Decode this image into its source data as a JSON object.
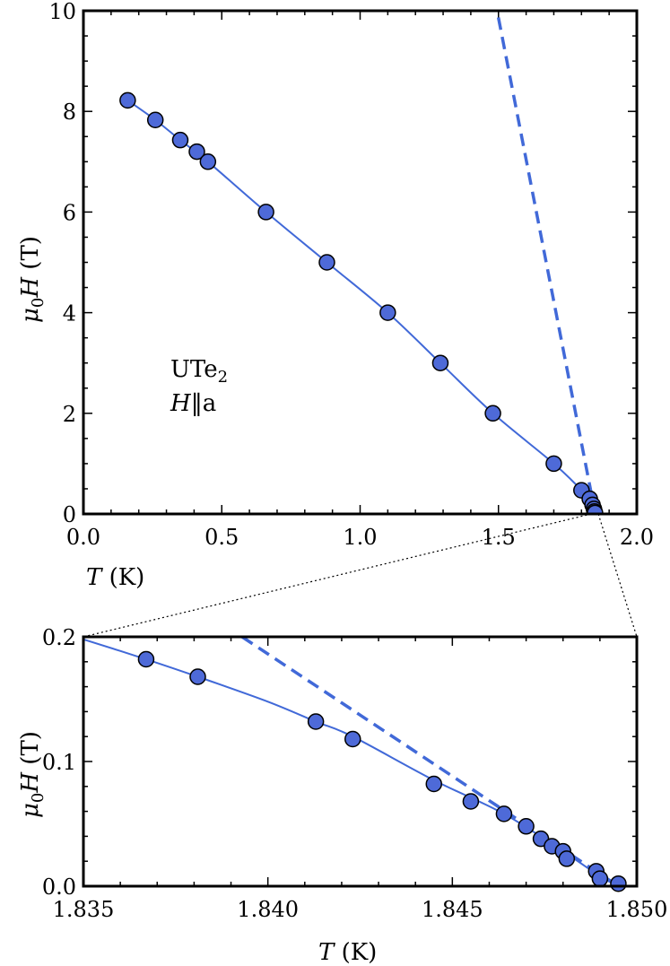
{
  "colors": {
    "series": "#4e6ad8",
    "line": "#4169d8"
  },
  "chart_data": [
    {
      "type": "scatter",
      "panel": "main",
      "xlabel": "T (K)",
      "ylabel": "μ0H (T)",
      "xlim": [
        0.0,
        2.0
      ],
      "ylim": [
        0,
        10
      ],
      "xticks": [
        "0.0",
        "0.5",
        "1.0",
        "1.5",
        "2.0"
      ],
      "yticks": [
        "0",
        "2",
        "4",
        "6",
        "8",
        "10"
      ],
      "annotation": {
        "line1": "UTe2",
        "line2": "H‖a"
      },
      "points": [
        [
          0.16,
          8.22
        ],
        [
          0.26,
          7.83
        ],
        [
          0.35,
          7.43
        ],
        [
          0.41,
          7.2
        ],
        [
          0.45,
          7.0
        ],
        [
          0.66,
          6.0
        ],
        [
          0.88,
          5.0
        ],
        [
          1.1,
          4.0
        ],
        [
          1.29,
          3.0
        ],
        [
          1.48,
          2.0
        ],
        [
          1.7,
          1.0
        ],
        [
          1.8,
          0.47
        ],
        [
          1.83,
          0.3
        ],
        [
          1.84,
          0.18
        ],
        [
          1.845,
          0.1
        ],
        [
          1.847,
          0.05
        ],
        [
          1.849,
          0.02
        ]
      ],
      "fit_line": [
        [
          0.16,
          8.22
        ],
        [
          0.26,
          7.83
        ],
        [
          0.35,
          7.43
        ],
        [
          0.45,
          7.0
        ],
        [
          0.66,
          6.0
        ],
        [
          0.88,
          5.0
        ],
        [
          1.1,
          4.0
        ],
        [
          1.29,
          3.0
        ],
        [
          1.48,
          2.0
        ],
        [
          1.7,
          1.0
        ],
        [
          1.8,
          0.47
        ],
        [
          1.84,
          0.18
        ],
        [
          1.85,
          0.0
        ]
      ],
      "dashed_line": [
        [
          1.85,
          0.0
        ],
        [
          1.495,
          10.0
        ]
      ],
      "zoom_box": {
        "x": [
          1.835,
          1.85
        ],
        "y": [
          0.0,
          0.2
        ]
      }
    },
    {
      "type": "scatter",
      "panel": "inset",
      "xlabel": "T (K)",
      "ylabel": "μ0H (T)",
      "xlim": [
        1.835,
        1.85
      ],
      "ylim": [
        0.0,
        0.2
      ],
      "xticks": [
        "1.835",
        "1.840",
        "1.845",
        "1.850"
      ],
      "yticks": [
        "0.0",
        "0.1",
        "0.2"
      ],
      "points": [
        [
          1.8367,
          0.182
        ],
        [
          1.8381,
          0.168
        ],
        [
          1.8413,
          0.132
        ],
        [
          1.8423,
          0.118
        ],
        [
          1.8445,
          0.082
        ],
        [
          1.8455,
          0.068
        ],
        [
          1.8464,
          0.058
        ],
        [
          1.847,
          0.048
        ],
        [
          1.8474,
          0.038
        ],
        [
          1.8477,
          0.032
        ],
        [
          1.848,
          0.028
        ],
        [
          1.8481,
          0.022
        ],
        [
          1.8489,
          0.012
        ],
        [
          1.849,
          0.006
        ],
        [
          1.8495,
          0.002
        ]
      ],
      "fit_line": [
        [
          1.835,
          0.198
        ],
        [
          1.8367,
          0.182
        ],
        [
          1.8381,
          0.168
        ],
        [
          1.84,
          0.148
        ],
        [
          1.8413,
          0.132
        ],
        [
          1.8423,
          0.12
        ],
        [
          1.8445,
          0.085
        ],
        [
          1.8464,
          0.058
        ],
        [
          1.848,
          0.028
        ],
        [
          1.849,
          0.008
        ],
        [
          1.8495,
          0.0
        ]
      ],
      "dashed_line": [
        [
          1.8393,
          0.2
        ],
        [
          1.8495,
          0.0
        ]
      ]
    }
  ]
}
